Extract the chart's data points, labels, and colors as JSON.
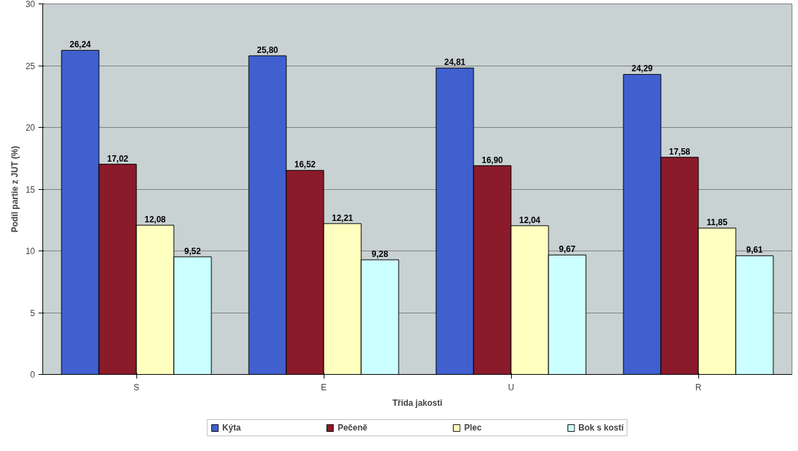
{
  "chart_data": {
    "type": "bar",
    "xlabel": "Třída jakosti",
    "ylabel": "Podíl partie z JUT (%)",
    "categories": [
      "S",
      "E",
      "U",
      "R"
    ],
    "series": [
      {
        "name": "Kýta",
        "color": "#4060d0",
        "values": [
          26.24,
          25.8,
          24.81,
          24.29
        ],
        "value_labels": [
          "26,24",
          "25,80",
          "24,81",
          "24,29"
        ]
      },
      {
        "name": "Pečeně",
        "color": "#8b1a2a",
        "values": [
          17.02,
          16.52,
          16.9,
          17.58
        ],
        "value_labels": [
          "17,02",
          "16,52",
          "16,90",
          "17,58"
        ]
      },
      {
        "name": "Plec",
        "color": "#ffffc0",
        "values": [
          12.08,
          12.21,
          12.04,
          11.85
        ],
        "value_labels": [
          "12,08",
          "12,21",
          "12,04",
          "11,85"
        ]
      },
      {
        "name": "Bok s kostí",
        "color": "#ccffff",
        "values": [
          9.52,
          9.28,
          9.67,
          9.61
        ],
        "value_labels": [
          "9,52",
          "9,28",
          "9,67",
          "9,61"
        ]
      }
    ],
    "ylim": [
      0,
      30
    ],
    "yticks": [
      0,
      5,
      10,
      15,
      20,
      25,
      30
    ],
    "grid": "y",
    "legend": "bottom"
  }
}
